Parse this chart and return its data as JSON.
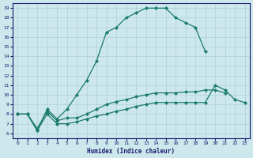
{
  "xlabel": "Humidex (Indice chaleur)",
  "xlim": [
    -0.5,
    23.5
  ],
  "ylim": [
    5.5,
    19.5
  ],
  "xticks": [
    0,
    1,
    2,
    3,
    4,
    5,
    6,
    7,
    8,
    9,
    10,
    11,
    12,
    13,
    14,
    15,
    16,
    17,
    18,
    19,
    20,
    21,
    22,
    23
  ],
  "yticks": [
    6,
    7,
    8,
    9,
    10,
    11,
    12,
    13,
    14,
    15,
    16,
    17,
    18,
    19
  ],
  "bg_color": "#cde8ec",
  "line_color": "#1a7a6e",
  "grid_color": "#aecfd4",
  "line1_x": [
    0,
    1,
    2,
    3,
    4,
    5,
    6,
    7,
    8,
    9,
    10,
    11,
    12,
    13,
    14,
    15,
    16,
    17,
    18,
    19
  ],
  "line1_y": [
    8.0,
    8.0,
    6.3,
    8.5,
    7.5,
    8.5,
    10.0,
    11.5,
    13.5,
    16.5,
    17.0,
    18.0,
    18.5,
    19.0,
    19.0,
    19.0,
    18.0,
    17.5,
    17.0,
    14.5
  ],
  "line2_x": [
    0,
    1,
    2,
    3,
    4,
    5,
    6,
    7,
    8,
    9,
    10,
    11,
    12,
    13,
    14,
    15,
    16,
    17,
    18,
    19,
    20,
    21
  ],
  "line2_y": [
    8.0,
    8.0,
    6.5,
    8.3,
    7.3,
    7.6,
    7.6,
    8.0,
    8.5,
    9.0,
    9.3,
    9.5,
    9.8,
    10.0,
    10.2,
    10.2,
    10.2,
    10.3,
    10.3,
    10.5,
    10.5,
    10.2
  ],
  "line3_x": [
    0,
    1,
    2,
    3,
    4,
    5,
    6,
    7,
    8,
    9,
    10,
    11,
    12,
    13,
    14,
    15,
    16,
    17,
    18,
    19,
    20,
    21,
    22,
    23
  ],
  "line3_y": [
    8.0,
    8.0,
    6.3,
    8.0,
    7.0,
    7.0,
    7.2,
    7.5,
    7.8,
    8.0,
    8.3,
    8.5,
    8.8,
    9.0,
    9.2,
    9.2,
    9.2,
    9.2,
    9.2,
    9.2,
    11.0,
    10.5,
    9.5,
    9.2
  ]
}
